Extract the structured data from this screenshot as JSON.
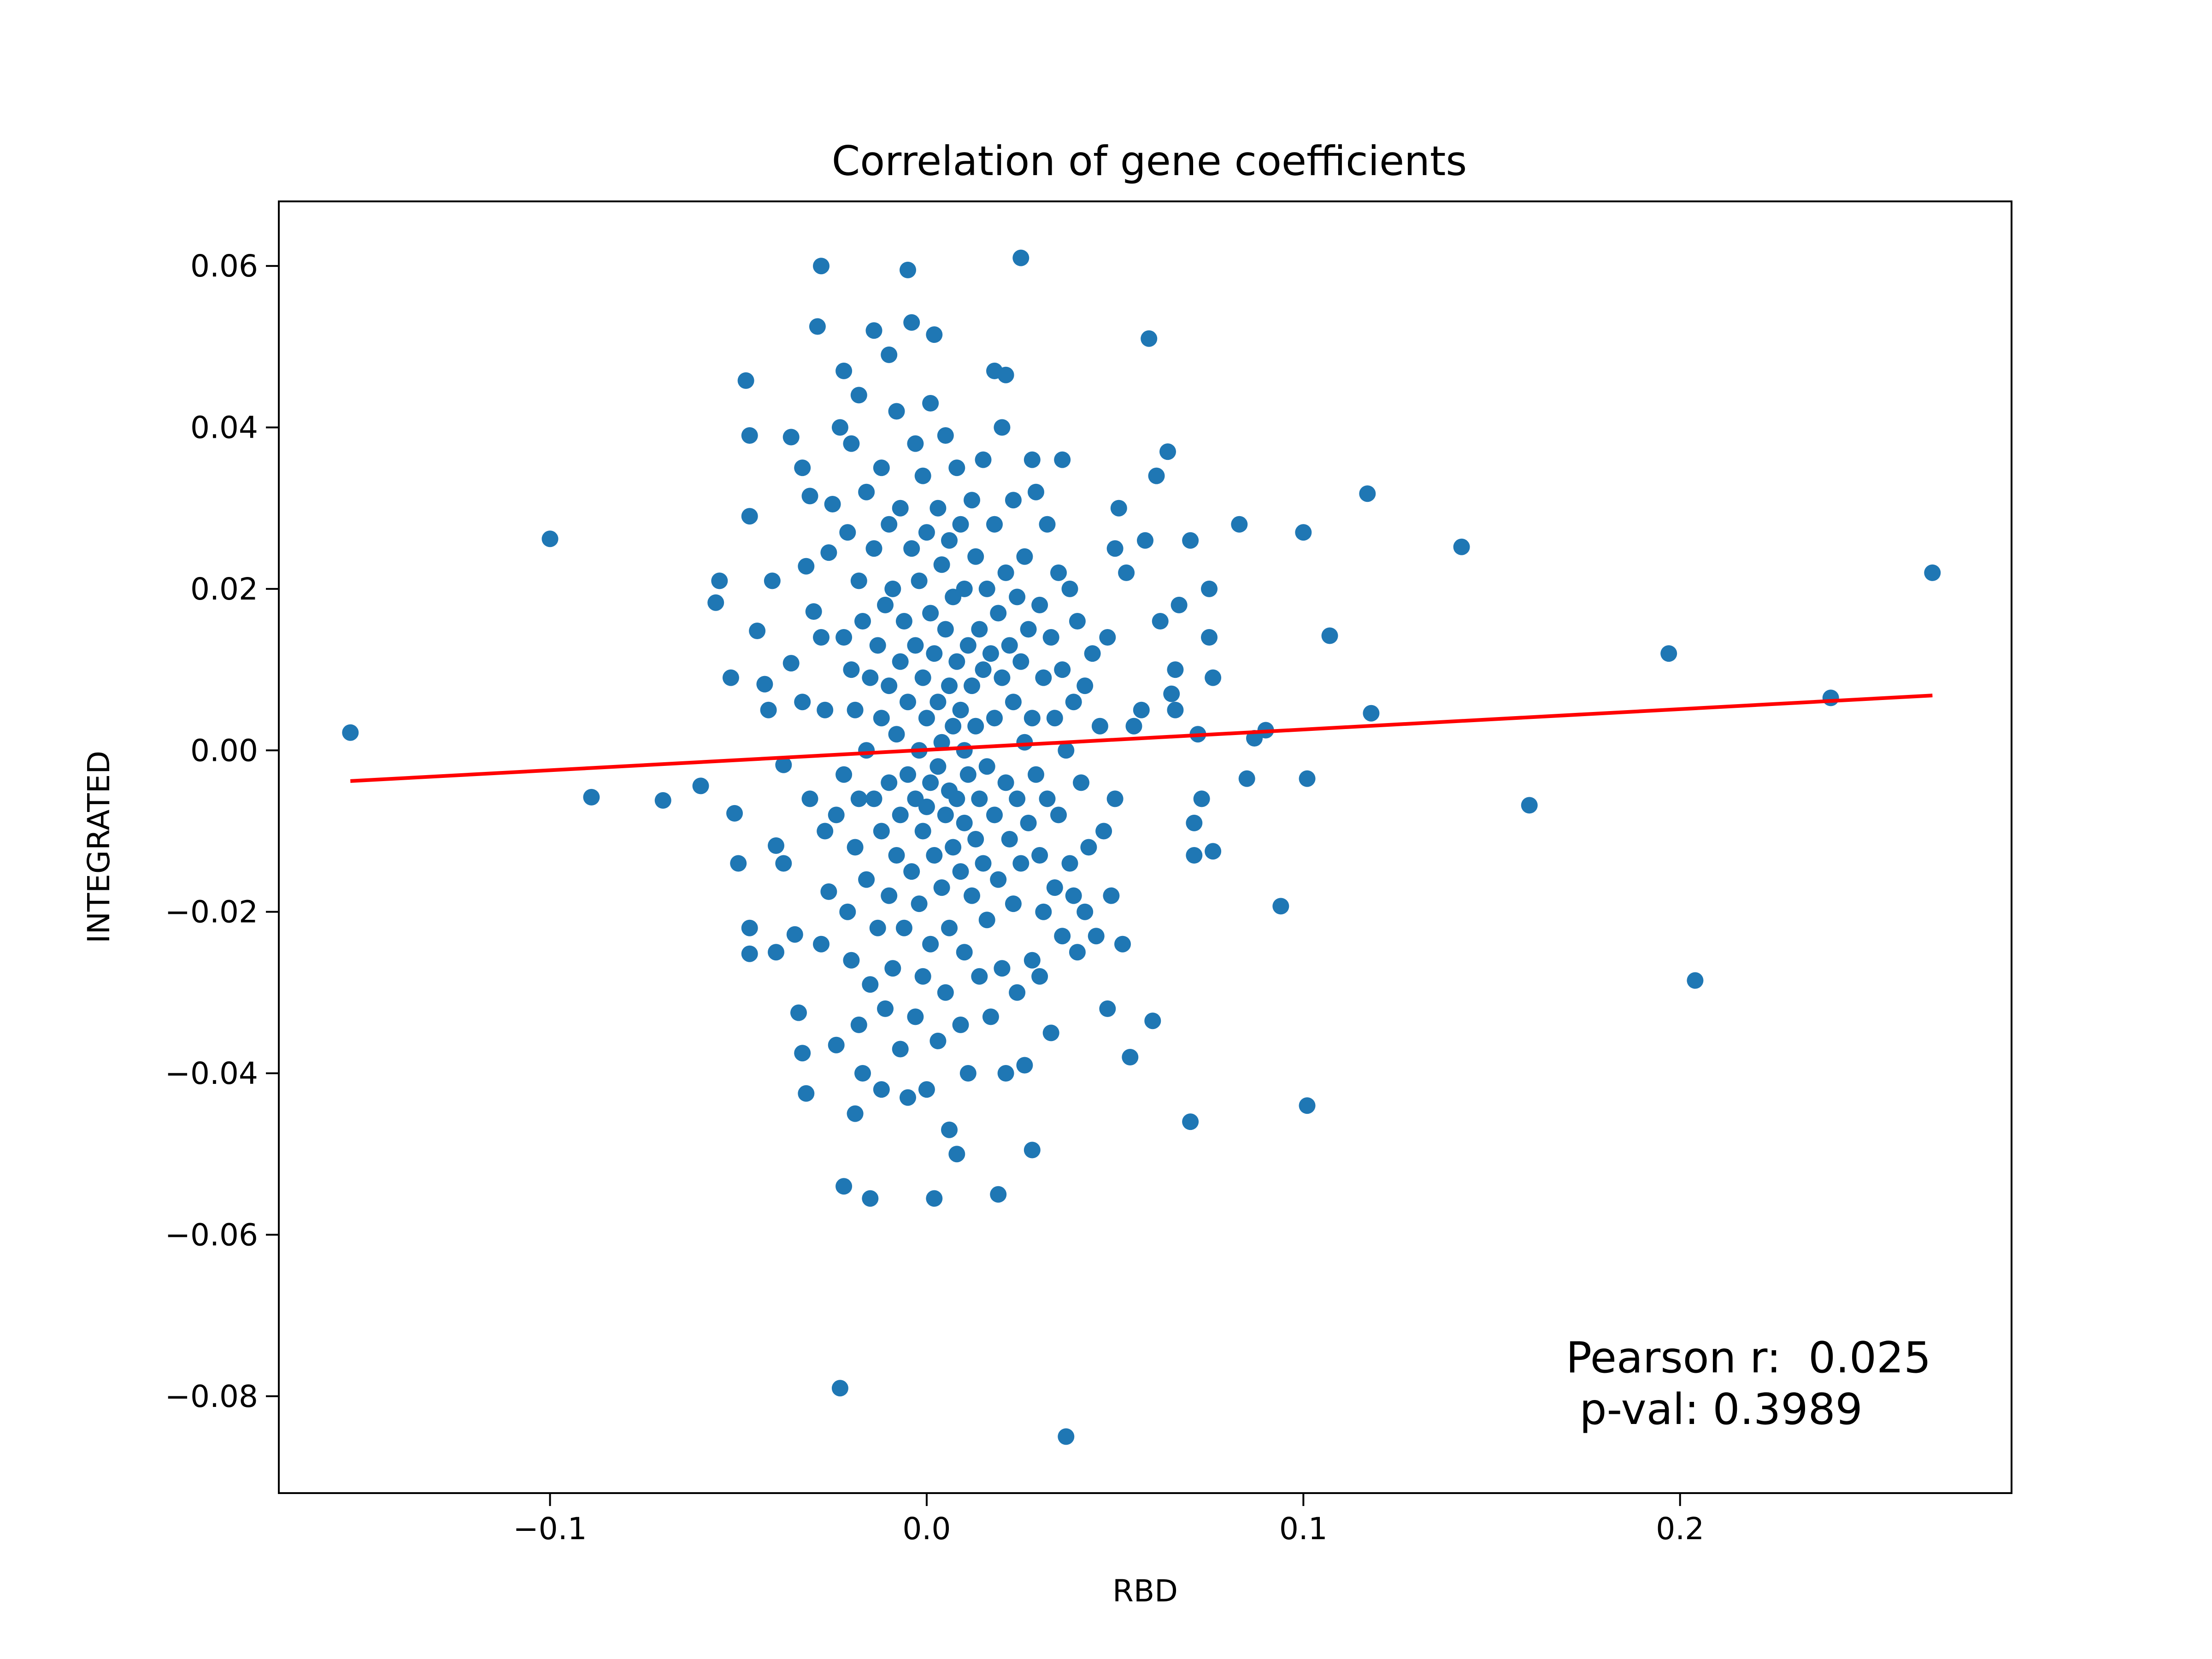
{
  "chart_data": {
    "type": "scatter",
    "title": "Correlation of gene coefficients",
    "xlabel": "RBD",
    "ylabel": "INTEGRATED",
    "xlim": [
      -0.172,
      0.288
    ],
    "ylim": [
      -0.092,
      0.068
    ],
    "xticks": [
      -0.1,
      0.0,
      0.1,
      0.2
    ],
    "xtick_labels": [
      "−0.1",
      "0.0",
      "0.1",
      "0.2"
    ],
    "yticks": [
      0.06,
      0.04,
      0.02,
      0.0,
      -0.02,
      -0.04,
      -0.06,
      -0.08
    ],
    "ytick_labels": [
      "0.06",
      "0.04",
      "0.02",
      "0.00",
      "−0.02",
      "−0.04",
      "−0.06",
      "−0.08"
    ],
    "grid": false,
    "point_color": "#1f77b4",
    "fit_line": {
      "color": "#ff0000",
      "x": [
        -0.153,
        0.267
      ],
      "y": [
        -0.0038,
        0.0068
      ]
    },
    "annotation": {
      "line1": "Pearson r:  0.025",
      "line2": " p-val: 0.3989"
    },
    "points": [
      [
        -0.153,
        0.0022
      ],
      [
        -0.1,
        0.0262
      ],
      [
        -0.089,
        -0.0058
      ],
      [
        -0.07,
        -0.0062
      ],
      [
        -0.06,
        -0.0044
      ],
      [
        -0.055,
        0.021
      ],
      [
        -0.056,
        0.0183
      ],
      [
        -0.052,
        0.009
      ],
      [
        -0.051,
        -0.0078
      ],
      [
        -0.05,
        -0.014
      ],
      [
        -0.048,
        0.0458
      ],
      [
        -0.047,
        0.039
      ],
      [
        -0.047,
        0.029
      ],
      [
        -0.047,
        -0.022
      ],
      [
        -0.047,
        -0.0252
      ],
      [
        -0.045,
        0.0148
      ],
      [
        -0.043,
        0.0082
      ],
      [
        -0.042,
        0.005
      ],
      [
        -0.041,
        0.021
      ],
      [
        -0.04,
        -0.0118
      ],
      [
        -0.04,
        -0.025
      ],
      [
        -0.038,
        -0.0018
      ],
      [
        -0.038,
        -0.014
      ],
      [
        -0.036,
        0.0388
      ],
      [
        -0.036,
        0.0108
      ],
      [
        -0.035,
        -0.0228
      ],
      [
        -0.034,
        -0.0325
      ],
      [
        -0.033,
        0.035
      ],
      [
        -0.033,
        0.006
      ],
      [
        -0.033,
        -0.0375
      ],
      [
        -0.032,
        0.0228
      ],
      [
        -0.032,
        -0.0425
      ],
      [
        -0.031,
        0.0315
      ],
      [
        -0.031,
        -0.006
      ],
      [
        -0.03,
        0.0172
      ],
      [
        -0.029,
        0.0525
      ],
      [
        -0.028,
        0.06
      ],
      [
        -0.028,
        0.014
      ],
      [
        -0.028,
        -0.024
      ],
      [
        -0.027,
        0.005
      ],
      [
        -0.027,
        -0.01
      ],
      [
        -0.026,
        0.0245
      ],
      [
        -0.026,
        -0.0175
      ],
      [
        -0.025,
        0.0305
      ],
      [
        -0.024,
        -0.008
      ],
      [
        -0.024,
        -0.0365
      ],
      [
        -0.023,
        -0.079
      ],
      [
        -0.023,
        0.04
      ],
      [
        -0.022,
        0.047
      ],
      [
        -0.022,
        0.014
      ],
      [
        -0.022,
        -0.003
      ],
      [
        -0.022,
        -0.054
      ],
      [
        -0.021,
        0.027
      ],
      [
        -0.021,
        -0.02
      ],
      [
        -0.02,
        0.038
      ],
      [
        -0.02,
        0.01
      ],
      [
        -0.02,
        -0.026
      ],
      [
        -0.019,
        0.005
      ],
      [
        -0.019,
        -0.012
      ],
      [
        -0.019,
        -0.045
      ],
      [
        -0.018,
        0.044
      ],
      [
        -0.018,
        0.021
      ],
      [
        -0.018,
        -0.006
      ],
      [
        -0.018,
        -0.034
      ],
      [
        -0.017,
        0.016
      ],
      [
        -0.017,
        -0.04
      ],
      [
        -0.016,
        0.032
      ],
      [
        -0.016,
        0.0
      ],
      [
        -0.016,
        -0.016
      ],
      [
        -0.015,
        0.009
      ],
      [
        -0.015,
        -0.029
      ],
      [
        -0.015,
        -0.0555
      ],
      [
        -0.014,
        0.052
      ],
      [
        -0.014,
        0.025
      ],
      [
        -0.014,
        -0.006
      ],
      [
        -0.013,
        0.013
      ],
      [
        -0.013,
        -0.022
      ],
      [
        -0.012,
        0.035
      ],
      [
        -0.012,
        0.004
      ],
      [
        -0.012,
        -0.01
      ],
      [
        -0.012,
        -0.042
      ],
      [
        -0.011,
        0.018
      ],
      [
        -0.011,
        -0.032
      ],
      [
        -0.01,
        0.049
      ],
      [
        -0.01,
        0.028
      ],
      [
        -0.01,
        0.008
      ],
      [
        -0.01,
        -0.004
      ],
      [
        -0.01,
        -0.018
      ],
      [
        -0.009,
        0.02
      ],
      [
        -0.009,
        -0.027
      ],
      [
        -0.008,
        0.042
      ],
      [
        -0.008,
        0.002
      ],
      [
        -0.008,
        -0.013
      ],
      [
        -0.007,
        0.03
      ],
      [
        -0.007,
        0.011
      ],
      [
        -0.007,
        -0.008
      ],
      [
        -0.007,
        -0.037
      ],
      [
        -0.006,
        0.016
      ],
      [
        -0.006,
        -0.022
      ],
      [
        -0.005,
        0.0595
      ],
      [
        -0.005,
        0.006
      ],
      [
        -0.005,
        -0.003
      ],
      [
        -0.005,
        -0.043
      ],
      [
        -0.004,
        0.053
      ],
      [
        -0.004,
        0.025
      ],
      [
        -0.004,
        -0.015
      ],
      [
        -0.003,
        0.038
      ],
      [
        -0.003,
        0.013
      ],
      [
        -0.003,
        -0.006
      ],
      [
        -0.003,
        -0.033
      ],
      [
        -0.002,
        0.021
      ],
      [
        -0.002,
        0.0
      ],
      [
        -0.002,
        -0.019
      ],
      [
        -0.001,
        0.034
      ],
      [
        -0.001,
        0.009
      ],
      [
        -0.001,
        -0.01
      ],
      [
        -0.001,
        -0.028
      ],
      [
        0.0,
        0.027
      ],
      [
        0.0,
        0.004
      ],
      [
        0.0,
        -0.007
      ],
      [
        0.0,
        -0.042
      ],
      [
        0.001,
        0.043
      ],
      [
        0.001,
        0.017
      ],
      [
        0.001,
        -0.004
      ],
      [
        0.001,
        -0.024
      ],
      [
        0.002,
        0.0515
      ],
      [
        0.002,
        0.012
      ],
      [
        0.002,
        -0.013
      ],
      [
        0.002,
        -0.0555
      ],
      [
        0.003,
        0.03
      ],
      [
        0.003,
        0.006
      ],
      [
        0.003,
        -0.002
      ],
      [
        0.003,
        -0.036
      ],
      [
        0.004,
        0.023
      ],
      [
        0.004,
        0.001
      ],
      [
        0.004,
        -0.017
      ],
      [
        0.005,
        0.039
      ],
      [
        0.005,
        0.015
      ],
      [
        0.005,
        -0.008
      ],
      [
        0.005,
        -0.03
      ],
      [
        0.006,
        0.026
      ],
      [
        0.006,
        0.008
      ],
      [
        0.006,
        -0.005
      ],
      [
        0.006,
        -0.022
      ],
      [
        0.006,
        -0.047
      ],
      [
        0.007,
        0.019
      ],
      [
        0.007,
        0.003
      ],
      [
        0.007,
        -0.012
      ],
      [
        0.008,
        0.035
      ],
      [
        0.008,
        0.011
      ],
      [
        0.008,
        -0.006
      ],
      [
        0.008,
        -0.05
      ],
      [
        0.009,
        0.028
      ],
      [
        0.009,
        0.005
      ],
      [
        0.009,
        -0.015
      ],
      [
        0.009,
        -0.034
      ],
      [
        0.01,
        0.02
      ],
      [
        0.01,
        0.0
      ],
      [
        0.01,
        -0.009
      ],
      [
        0.01,
        -0.025
      ],
      [
        0.011,
        0.013
      ],
      [
        0.011,
        -0.003
      ],
      [
        0.011,
        -0.04
      ],
      [
        0.012,
        0.031
      ],
      [
        0.012,
        0.008
      ],
      [
        0.012,
        -0.018
      ],
      [
        0.013,
        0.024
      ],
      [
        0.013,
        0.003
      ],
      [
        0.013,
        -0.011
      ],
      [
        0.014,
        0.015
      ],
      [
        0.014,
        -0.006
      ],
      [
        0.014,
        -0.028
      ],
      [
        0.015,
        0.036
      ],
      [
        0.015,
        0.01
      ],
      [
        0.015,
        -0.014
      ],
      [
        0.016,
        0.02
      ],
      [
        0.016,
        -0.002
      ],
      [
        0.016,
        -0.021
      ],
      [
        0.017,
        0.012
      ],
      [
        0.017,
        -0.033
      ],
      [
        0.018,
        0.047
      ],
      [
        0.018,
        0.028
      ],
      [
        0.018,
        0.004
      ],
      [
        0.018,
        -0.008
      ],
      [
        0.019,
        0.017
      ],
      [
        0.019,
        -0.016
      ],
      [
        0.019,
        -0.055
      ],
      [
        0.02,
        0.04
      ],
      [
        0.02,
        0.009
      ],
      [
        0.02,
        -0.027
      ],
      [
        0.021,
        0.0465
      ],
      [
        0.021,
        0.022
      ],
      [
        0.021,
        -0.004
      ],
      [
        0.021,
        -0.04
      ],
      [
        0.022,
        0.013
      ],
      [
        0.022,
        -0.011
      ],
      [
        0.023,
        0.031
      ],
      [
        0.023,
        0.006
      ],
      [
        0.023,
        -0.019
      ],
      [
        0.024,
        0.019
      ],
      [
        0.024,
        -0.006
      ],
      [
        0.024,
        -0.03
      ],
      [
        0.025,
        0.061
      ],
      [
        0.025,
        0.011
      ],
      [
        0.025,
        -0.014
      ],
      [
        0.026,
        0.024
      ],
      [
        0.026,
        0.001
      ],
      [
        0.026,
        -0.039
      ],
      [
        0.027,
        0.015
      ],
      [
        0.027,
        -0.009
      ],
      [
        0.028,
        0.036
      ],
      [
        0.028,
        0.004
      ],
      [
        0.028,
        -0.026
      ],
      [
        0.028,
        -0.0495
      ],
      [
        0.029,
        0.032
      ],
      [
        0.029,
        -0.003
      ],
      [
        0.03,
        0.018
      ],
      [
        0.03,
        -0.013
      ],
      [
        0.03,
        -0.028
      ],
      [
        0.031,
        0.009
      ],
      [
        0.031,
        -0.02
      ],
      [
        0.032,
        0.028
      ],
      [
        0.032,
        -0.006
      ],
      [
        0.033,
        0.014
      ],
      [
        0.033,
        -0.035
      ],
      [
        0.034,
        0.004
      ],
      [
        0.034,
        -0.017
      ],
      [
        0.035,
        0.022
      ],
      [
        0.035,
        -0.008
      ],
      [
        0.036,
        0.036
      ],
      [
        0.036,
        0.01
      ],
      [
        0.036,
        -0.023
      ],
      [
        0.037,
        -0.085
      ],
      [
        0.037,
        0.0
      ],
      [
        0.038,
        0.02
      ],
      [
        0.038,
        -0.014
      ],
      [
        0.039,
        0.006
      ],
      [
        0.039,
        -0.018
      ],
      [
        0.04,
        0.016
      ],
      [
        0.04,
        -0.025
      ],
      [
        0.041,
        -0.004
      ],
      [
        0.042,
        0.008
      ],
      [
        0.042,
        -0.02
      ],
      [
        0.043,
        -0.012
      ],
      [
        0.044,
        0.012
      ],
      [
        0.045,
        -0.023
      ],
      [
        0.046,
        0.003
      ],
      [
        0.047,
        -0.01
      ],
      [
        0.048,
        0.014
      ],
      [
        0.048,
        -0.032
      ],
      [
        0.049,
        -0.018
      ],
      [
        0.05,
        0.025
      ],
      [
        0.05,
        -0.006
      ],
      [
        0.051,
        0.03
      ],
      [
        0.052,
        -0.024
      ],
      [
        0.053,
        0.022
      ],
      [
        0.054,
        -0.038
      ],
      [
        0.055,
        0.003
      ],
      [
        0.057,
        0.005
      ],
      [
        0.058,
        0.026
      ],
      [
        0.059,
        0.051
      ],
      [
        0.06,
        -0.0335
      ],
      [
        0.061,
        0.034
      ],
      [
        0.062,
        0.016
      ],
      [
        0.064,
        0.037
      ],
      [
        0.065,
        0.007
      ],
      [
        0.066,
        0.005
      ],
      [
        0.066,
        0.01
      ],
      [
        0.067,
        0.018
      ],
      [
        0.07,
        0.026
      ],
      [
        0.07,
        -0.046
      ],
      [
        0.071,
        -0.013
      ],
      [
        0.071,
        -0.009
      ],
      [
        0.072,
        0.002
      ],
      [
        0.073,
        -0.006
      ],
      [
        0.075,
        0.02
      ],
      [
        0.075,
        0.014
      ],
      [
        0.076,
        0.009
      ],
      [
        0.076,
        -0.0125
      ],
      [
        0.083,
        0.028
      ],
      [
        0.085,
        -0.0035
      ],
      [
        0.087,
        0.0015
      ],
      [
        0.09,
        0.0025
      ],
      [
        0.094,
        -0.0193
      ],
      [
        0.1,
        0.027
      ],
      [
        0.101,
        -0.0035
      ],
      [
        0.101,
        -0.044
      ],
      [
        0.107,
        0.0142
      ],
      [
        0.117,
        0.0318
      ],
      [
        0.118,
        0.0046
      ],
      [
        0.142,
        0.0252
      ],
      [
        0.16,
        -0.0068
      ],
      [
        0.197,
        0.012
      ],
      [
        0.204,
        -0.0285
      ],
      [
        0.24,
        0.0065
      ],
      [
        0.267,
        0.022
      ]
    ]
  }
}
